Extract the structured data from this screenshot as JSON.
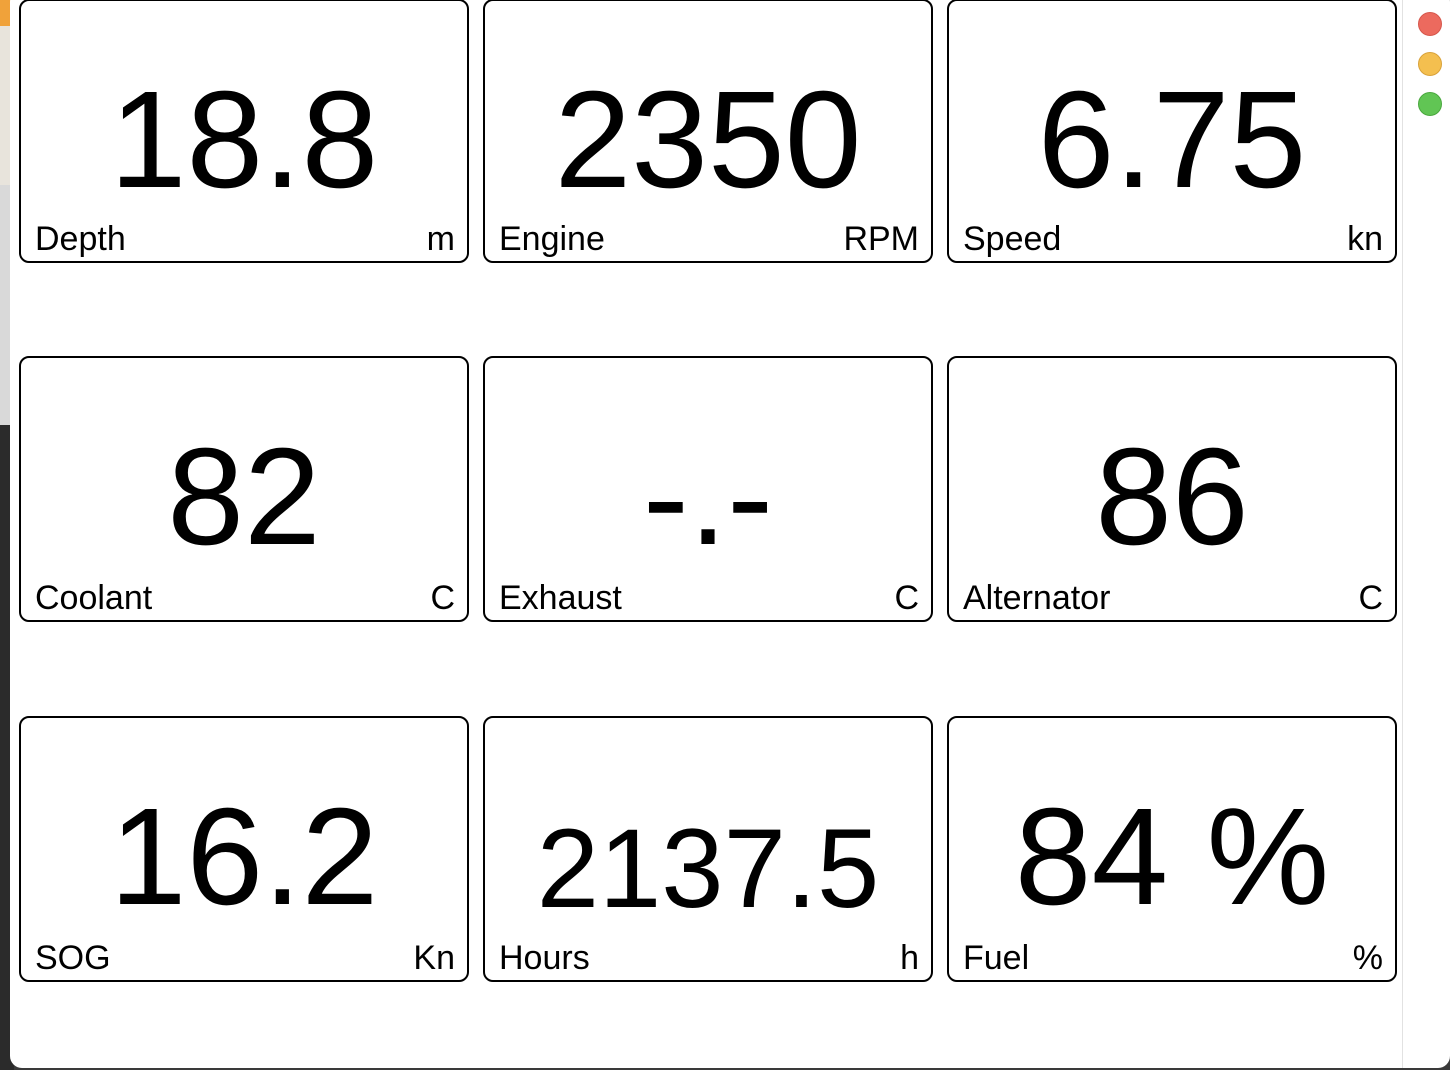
{
  "window": {
    "controls": [
      "close",
      "minimize",
      "zoom"
    ],
    "control_colors": {
      "close": "#ec6a5e",
      "minimize": "#f4bf4f",
      "zoom": "#61c554"
    }
  },
  "gauges": [
    {
      "label": "Depth",
      "value": "18.8",
      "unit": "m"
    },
    {
      "label": "Engine",
      "value": "2350",
      "unit": "RPM"
    },
    {
      "label": "Speed",
      "value": "6.75",
      "unit": "kn"
    },
    {
      "label": "Coolant",
      "value": "82",
      "unit": "C"
    },
    {
      "label": "Exhaust",
      "value": "-.-",
      "unit": "C"
    },
    {
      "label": "Alternator",
      "value": "86",
      "unit": "C"
    },
    {
      "label": "SOG",
      "value": "16.2",
      "unit": "Kn"
    },
    {
      "label": "Hours",
      "value": "2137.5",
      "unit": "h"
    },
    {
      "label": "Fuel",
      "value": "84 %",
      "unit": "%"
    }
  ]
}
